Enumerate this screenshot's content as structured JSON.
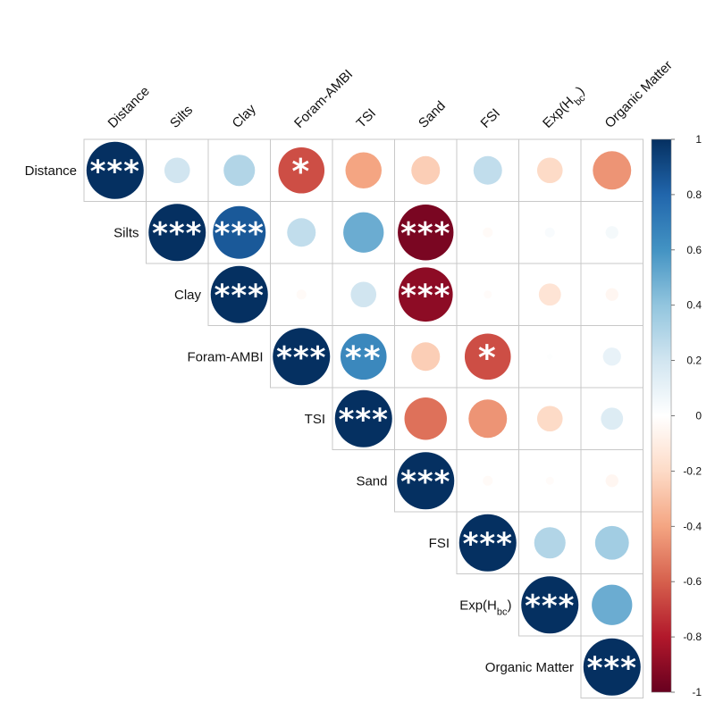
{
  "chart_data": {
    "type": "heatmap",
    "variables": [
      "Distance",
      "Silts",
      "Clay",
      "Foram-AMBI",
      "TSI",
      "Sand",
      "FSI",
      "Exp(H_bc)",
      "Organic Matter"
    ],
    "variable_labels": [
      {
        "main": "Distance",
        "sub": ""
      },
      {
        "main": "Silts",
        "sub": ""
      },
      {
        "main": "Clay",
        "sub": ""
      },
      {
        "main": "Foram-AMBI",
        "sub": ""
      },
      {
        "main": "TSI",
        "sub": ""
      },
      {
        "main": "Sand",
        "sub": ""
      },
      {
        "main": "FSI",
        "sub": ""
      },
      {
        "main": "Exp(H",
        "sub": "bc",
        "tail": ")"
      },
      {
        "main": "Organic Matter",
        "sub": ""
      }
    ],
    "matrix_shape": "upper-triangular",
    "values": [
      [
        1.0,
        0.2,
        0.3,
        -0.65,
        -0.4,
        -0.25,
        0.25,
        -0.2,
        -0.45
      ],
      [
        null,
        1.0,
        0.85,
        0.25,
        0.5,
        -0.95,
        -0.03,
        0.03,
        0.05
      ],
      [
        null,
        null,
        1.0,
        -0.03,
        0.2,
        -0.9,
        -0.02,
        -0.15,
        -0.05
      ],
      [
        null,
        null,
        null,
        1.0,
        0.65,
        -0.25,
        -0.65,
        0.01,
        0.1
      ],
      [
        null,
        null,
        null,
        null,
        1.0,
        -0.55,
        -0.45,
        -0.2,
        0.15
      ],
      [
        null,
        null,
        null,
        null,
        null,
        1.0,
        -0.03,
        -0.02,
        -0.05
      ],
      [
        null,
        null,
        null,
        null,
        null,
        null,
        1.0,
        0.3,
        0.35
      ],
      [
        null,
        null,
        null,
        null,
        null,
        null,
        null,
        1.0,
        0.5
      ],
      [
        null,
        null,
        null,
        null,
        null,
        null,
        null,
        null,
        1.0
      ]
    ],
    "significance": [
      [
        "***",
        "",
        "",
        "*",
        "",
        "",
        "",
        "",
        ""
      ],
      [
        "",
        "***",
        "***",
        "",
        "",
        "***",
        "",
        "",
        ""
      ],
      [
        "",
        "",
        "***",
        "",
        "",
        "***",
        "",
        "",
        ""
      ],
      [
        "",
        "",
        "",
        "***",
        "**",
        "",
        "*",
        "",
        ""
      ],
      [
        "",
        "",
        "",
        "",
        "***",
        "",
        "",
        "",
        ""
      ],
      [
        "",
        "",
        "",
        "",
        "",
        "***",
        "",
        "",
        ""
      ],
      [
        "",
        "",
        "",
        "",
        "",
        "",
        "***",
        "",
        ""
      ],
      [
        "",
        "",
        "",
        "",
        "",
        "",
        "",
        "***",
        ""
      ],
      [
        "",
        "",
        "",
        "",
        "",
        "",
        "",
        "",
        "***"
      ]
    ],
    "colorbar": {
      "range": [
        -1,
        1
      ],
      "ticks": [
        1,
        0.8,
        0.6,
        0.4,
        0.2,
        0,
        -0.2,
        -0.4,
        -0.6,
        -0.8,
        -1
      ],
      "tick_labels": [
        "1",
        "0.8",
        "0.6",
        "0.4",
        "0.2",
        "0",
        "-0.2",
        "-0.4",
        "-0.6",
        "-0.8",
        "-1"
      ],
      "colors": [
        "#67001F",
        "#B2182B",
        "#D6604D",
        "#F4A582",
        "#FDDBC7",
        "#FFFFFF",
        "#D1E5F0",
        "#92C5DE",
        "#4393C3",
        "#2166AC",
        "#053061"
      ],
      "placement": "right"
    },
    "grid": true,
    "marker": "circle"
  }
}
